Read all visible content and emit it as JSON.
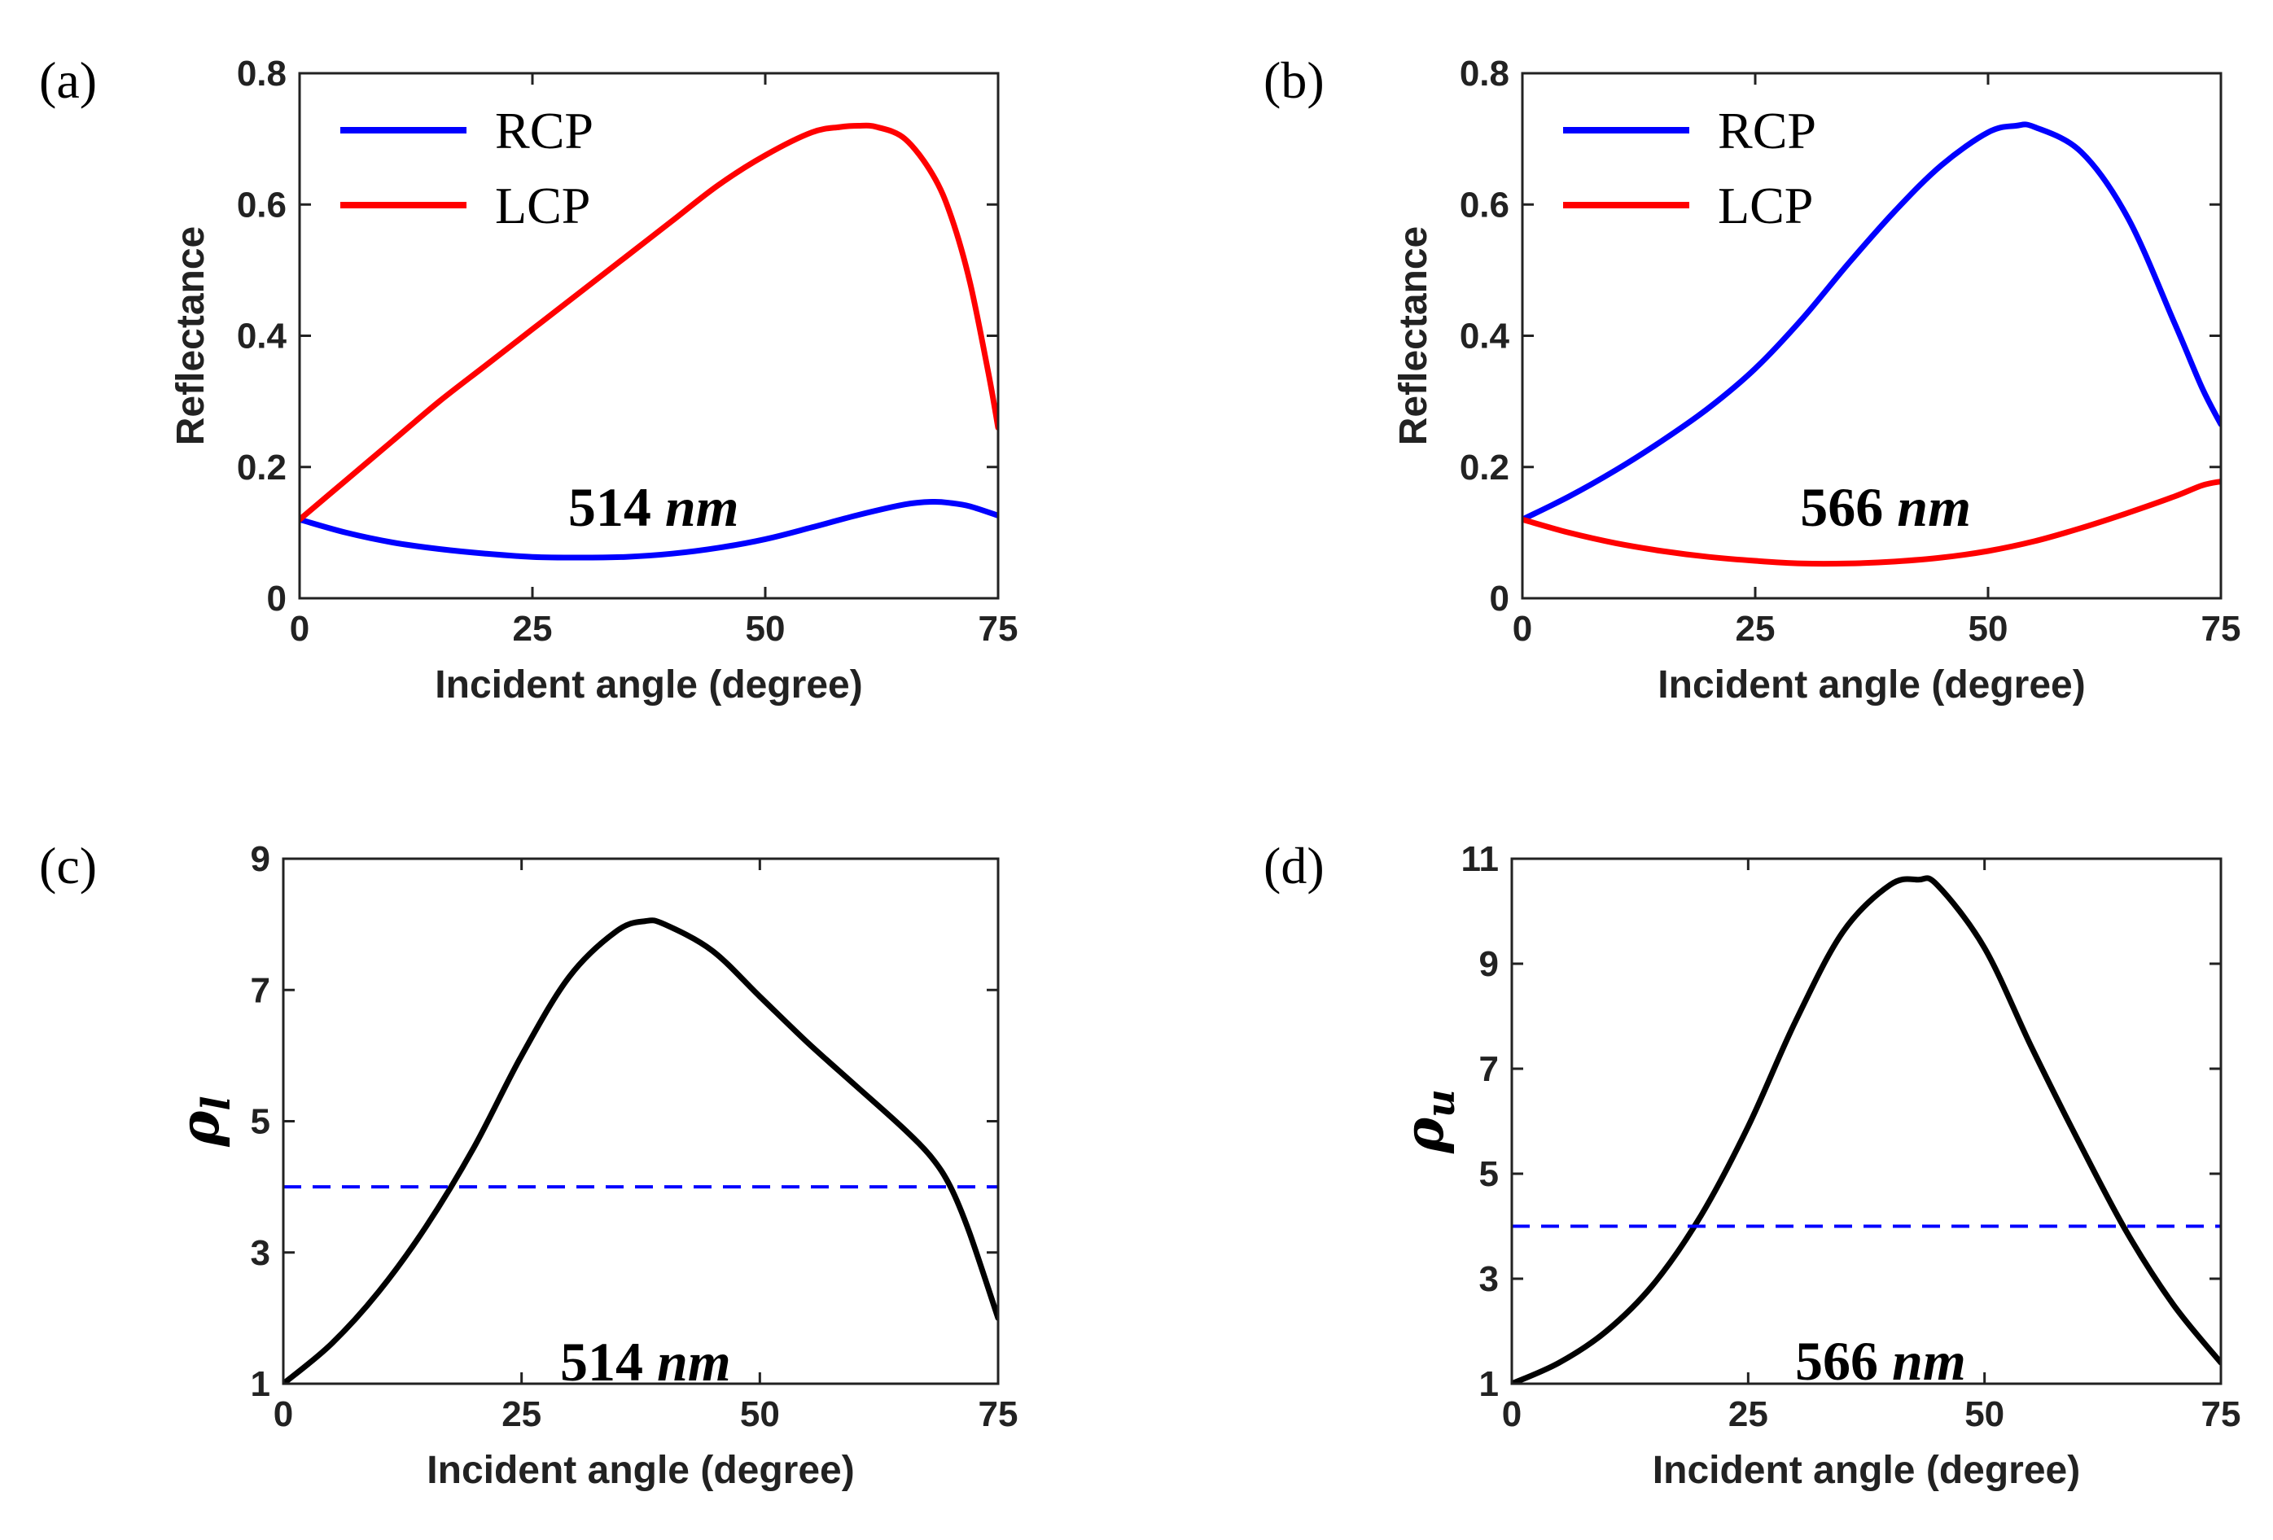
{
  "chart_data": [
    {
      "panel": "(a)",
      "type": "line",
      "xlabel": "Incident angle (degree)",
      "ylabel": "Reflectance",
      "xlim": [
        0,
        75
      ],
      "ylim": [
        0,
        0.8
      ],
      "xticks": [
        0,
        25,
        50,
        75
      ],
      "yticks": [
        0,
        0.2,
        0.4,
        0.6,
        0.8
      ],
      "ytick_labels": [
        "0",
        "0.2",
        "0.4",
        "0.6",
        "0.8"
      ],
      "legend": "top-left",
      "annotation": {
        "value": "514",
        "unit": "nm",
        "x": 38,
        "y": 0.14
      },
      "series": [
        {
          "name": "RCP",
          "color": "#0000ff",
          "dash": false,
          "x": [
            0,
            5,
            10,
            15,
            20,
            25,
            30,
            35,
            40,
            45,
            50,
            55,
            60,
            65,
            68,
            70,
            72,
            75
          ],
          "y": [
            0.12,
            0.1,
            0.085,
            0.075,
            0.068,
            0.063,
            0.062,
            0.063,
            0.068,
            0.077,
            0.09,
            0.108,
            0.127,
            0.143,
            0.147,
            0.145,
            0.14,
            0.126
          ]
        },
        {
          "name": "LCP",
          "color": "#ff0000",
          "dash": false,
          "x": [
            0,
            5,
            10,
            15,
            20,
            25,
            30,
            35,
            40,
            45,
            50,
            55,
            58,
            60,
            62,
            65,
            68,
            70,
            72,
            74,
            75
          ],
          "y": [
            0.12,
            0.18,
            0.24,
            0.3,
            0.355,
            0.41,
            0.465,
            0.52,
            0.575,
            0.63,
            0.675,
            0.71,
            0.718,
            0.72,
            0.718,
            0.7,
            0.645,
            0.58,
            0.48,
            0.34,
            0.26
          ]
        }
      ]
    },
    {
      "panel": "(b)",
      "type": "line",
      "xlabel": "Incident angle (degree)",
      "ylabel": "Reflectance",
      "xlim": [
        0,
        75
      ],
      "ylim": [
        0,
        0.8
      ],
      "xticks": [
        0,
        25,
        50,
        75
      ],
      "yticks": [
        0,
        0.2,
        0.4,
        0.6,
        0.8
      ],
      "ytick_labels": [
        "0",
        "0.2",
        "0.4",
        "0.6",
        "0.8"
      ],
      "legend": "top-left",
      "annotation": {
        "value": "566",
        "unit": "nm",
        "x": 39,
        "y": 0.14
      },
      "series": [
        {
          "name": "RCP",
          "color": "#0000ff",
          "dash": false,
          "x": [
            0,
            5,
            10,
            15,
            20,
            25,
            30,
            35,
            40,
            45,
            50,
            53,
            55,
            60,
            65,
            70,
            73,
            75
          ],
          "y": [
            0.12,
            0.155,
            0.195,
            0.24,
            0.29,
            0.35,
            0.425,
            0.51,
            0.59,
            0.66,
            0.71,
            0.72,
            0.718,
            0.68,
            0.58,
            0.42,
            0.32,
            0.265
          ]
        },
        {
          "name": "LCP",
          "color": "#ff0000",
          "dash": false,
          "x": [
            0,
            5,
            10,
            15,
            20,
            25,
            30,
            35,
            40,
            45,
            50,
            55,
            60,
            65,
            70,
            73,
            75
          ],
          "y": [
            0.12,
            0.1,
            0.084,
            0.072,
            0.063,
            0.057,
            0.053,
            0.053,
            0.056,
            0.062,
            0.072,
            0.087,
            0.107,
            0.13,
            0.155,
            0.172,
            0.178
          ]
        }
      ]
    },
    {
      "panel": "(c)",
      "type": "line",
      "xlabel": "Incident angle (degree)",
      "ylabel": "ρ",
      "ylabel_sub": "l",
      "xlim": [
        0,
        75
      ],
      "ylim": [
        1,
        9
      ],
      "xticks": [
        0,
        25,
        50,
        75
      ],
      "yticks": [
        1,
        3,
        5,
        7,
        9
      ],
      "ytick_labels": [
        "1",
        "3",
        "5",
        "7",
        "9"
      ],
      "annotation": {
        "value": "514",
        "unit": "nm",
        "x": 38,
        "y": 1.35
      },
      "series": [
        {
          "color": "#000000",
          "dash": false,
          "x": [
            0,
            5,
            10,
            15,
            20,
            25,
            30,
            35,
            38,
            40,
            45,
            50,
            55,
            60,
            65,
            68,
            70,
            72,
            75
          ],
          "y": [
            1.0,
            1.6,
            2.4,
            3.4,
            4.6,
            6.0,
            7.2,
            7.9,
            8.05,
            8.0,
            7.6,
            6.9,
            6.2,
            5.55,
            4.9,
            4.45,
            4.0,
            3.3,
            2.0
          ]
        },
        {
          "color": "#0000ff",
          "dash": true,
          "x": [
            0,
            75
          ],
          "y": [
            4,
            4
          ]
        }
      ]
    },
    {
      "panel": "(d)",
      "type": "line",
      "xlabel": "Incident angle (degree)",
      "ylabel": "ρ",
      "ylabel_sub": "u",
      "xlim": [
        0,
        75
      ],
      "ylim": [
        1,
        11
      ],
      "xticks": [
        0,
        25,
        50,
        75
      ],
      "yticks": [
        1,
        3,
        5,
        7,
        9,
        11
      ],
      "ytick_labels": [
        "1",
        "3",
        "5",
        "7",
        "9",
        "11"
      ],
      "annotation": {
        "value": "566",
        "unit": "nm",
        "x": 39,
        "y": 1.45
      },
      "series": [
        {
          "color": "#000000",
          "dash": false,
          "x": [
            0,
            5,
            10,
            15,
            20,
            25,
            30,
            35,
            40,
            43,
            45,
            50,
            55,
            60,
            65,
            70,
            75
          ],
          "y": [
            1.0,
            1.4,
            2.0,
            2.9,
            4.2,
            5.9,
            7.9,
            9.6,
            10.5,
            10.6,
            10.5,
            9.3,
            7.4,
            5.6,
            3.9,
            2.5,
            1.4
          ]
        },
        {
          "color": "#0000ff",
          "dash": true,
          "x": [
            0,
            75
          ],
          "y": [
            4,
            4
          ]
        }
      ]
    }
  ]
}
